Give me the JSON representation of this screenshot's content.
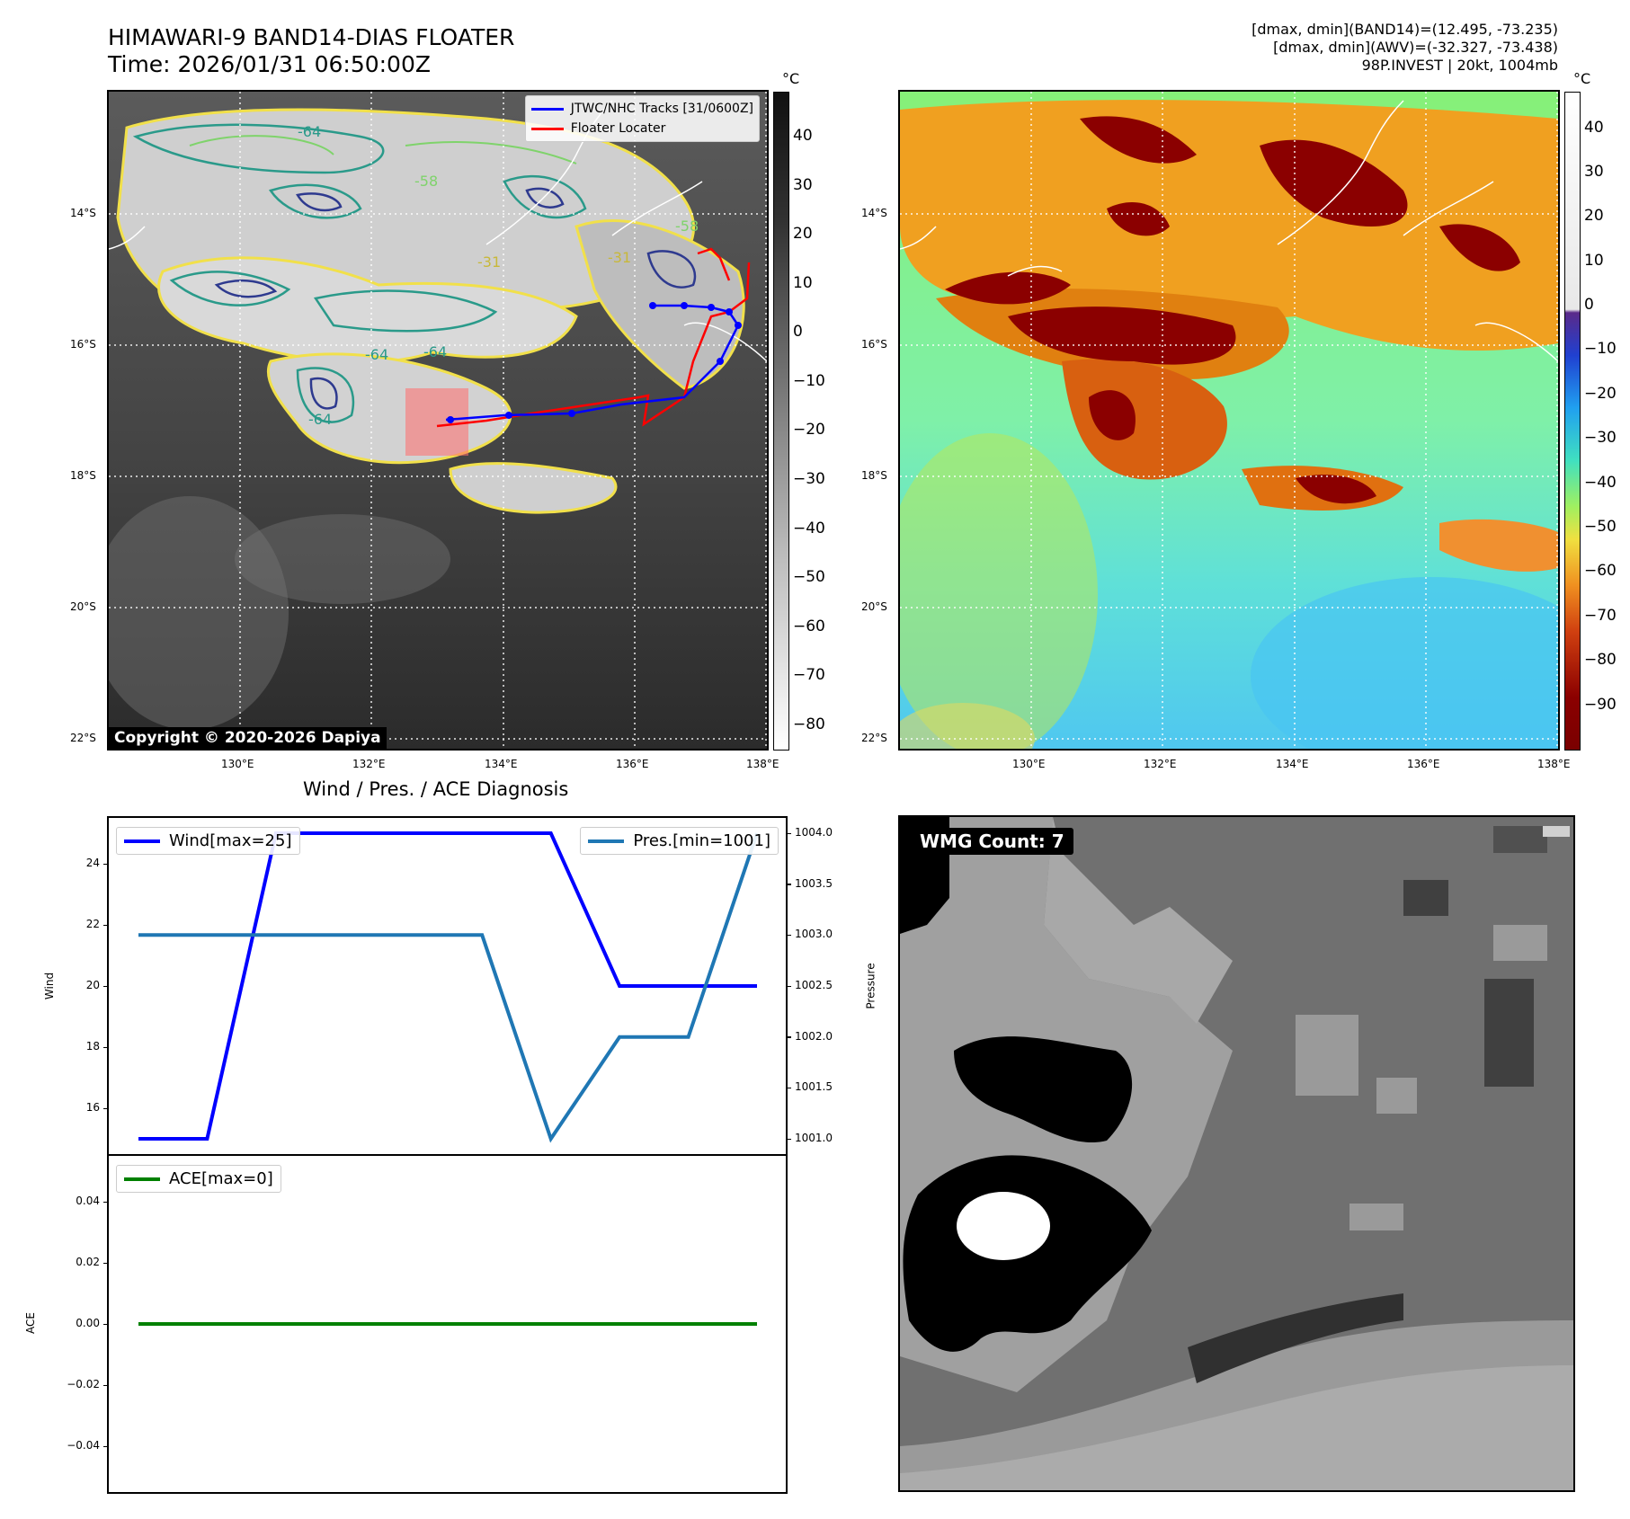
{
  "header": {
    "title_line1": "HIMAWARI-9 BAND14-DIAS FLOATER",
    "title_line2": "Time: 2026/01/31 06:50:00Z",
    "info_line1": "[dmax, dmin](BAND14)=(12.495, -73.235)",
    "info_line2": "[dmax, dmin](AWV)=(-32.327, -73.438)",
    "info_line3": "98P.INVEST | 20kt, 1004mb"
  },
  "map": {
    "lat_labels": [
      "14°S",
      "16°S",
      "18°S",
      "20°S",
      "22°S"
    ],
    "lon_labels": [
      "130°E",
      "132°E",
      "134°E",
      "136°E",
      "138°E"
    ],
    "contour_labels": [
      "-64",
      "-58",
      "-31",
      "-64",
      "-64",
      "-64",
      "-31",
      "-58"
    ],
    "copyright": "Copyright © 2020-2026 Dapiya",
    "legend_track": "JTWC/NHC Tracks [31/0600Z]",
    "legend_locater": "Floater Locater",
    "track_color": "#0000ff",
    "locater_color": "#ff0000"
  },
  "colorbar_left": {
    "unit": "°C",
    "ticks": [
      "40",
      "30",
      "20",
      "10",
      "0",
      "−10",
      "−20",
      "−30",
      "−40",
      "−50",
      "−60",
      "−70",
      "−80"
    ]
  },
  "colorbar_right": {
    "unit": "°C",
    "ticks": [
      "40",
      "30",
      "20",
      "10",
      "0",
      "−10",
      "−20",
      "−30",
      "−40",
      "−50",
      "−60",
      "−70",
      "−80",
      "−90"
    ]
  },
  "wmg": {
    "label": "WMG Count: 7"
  },
  "chart_data": [
    {
      "type": "line",
      "title": "Wind / Pres. / ACE Diagnosis",
      "ylabel": "Wind",
      "y2label": "Pressure",
      "ylim": [
        14.5,
        25.5
      ],
      "y2lim": [
        1000.85,
        1004.15
      ],
      "yticks": [
        "16",
        "18",
        "20",
        "22",
        "24"
      ],
      "y2ticks": [
        "1001.0",
        "1001.5",
        "1002.0",
        "1002.5",
        "1003.0",
        "1003.5",
        "1004.0"
      ],
      "grid": false,
      "series": [
        {
          "name": "Wind[max=25]",
          "axis": "left",
          "color": "#0000ff",
          "values": [
            15,
            15,
            25,
            25,
            25,
            25,
            25,
            20,
            20,
            20
          ]
        },
        {
          "name": "Pres.[min=1001]",
          "axis": "right",
          "color": "#1f77b4",
          "values": [
            1003,
            1003,
            1003,
            1003,
            1003,
            1003,
            1001,
            1002,
            1002,
            1004
          ]
        }
      ],
      "legend_left": "top-left",
      "legend_right": "top-right"
    },
    {
      "type": "line",
      "ylabel": "ACE",
      "ylim": [
        -0.055,
        0.055
      ],
      "yticks": [
        "0.04",
        "0.02",
        "0.00",
        "−0.02",
        "−0.04"
      ],
      "grid": false,
      "series": [
        {
          "name": "ACE[max=0]",
          "color": "#008000",
          "values": [
            0,
            0,
            0,
            0,
            0,
            0,
            0,
            0,
            0,
            0
          ]
        }
      ],
      "legend": "top-left"
    }
  ]
}
